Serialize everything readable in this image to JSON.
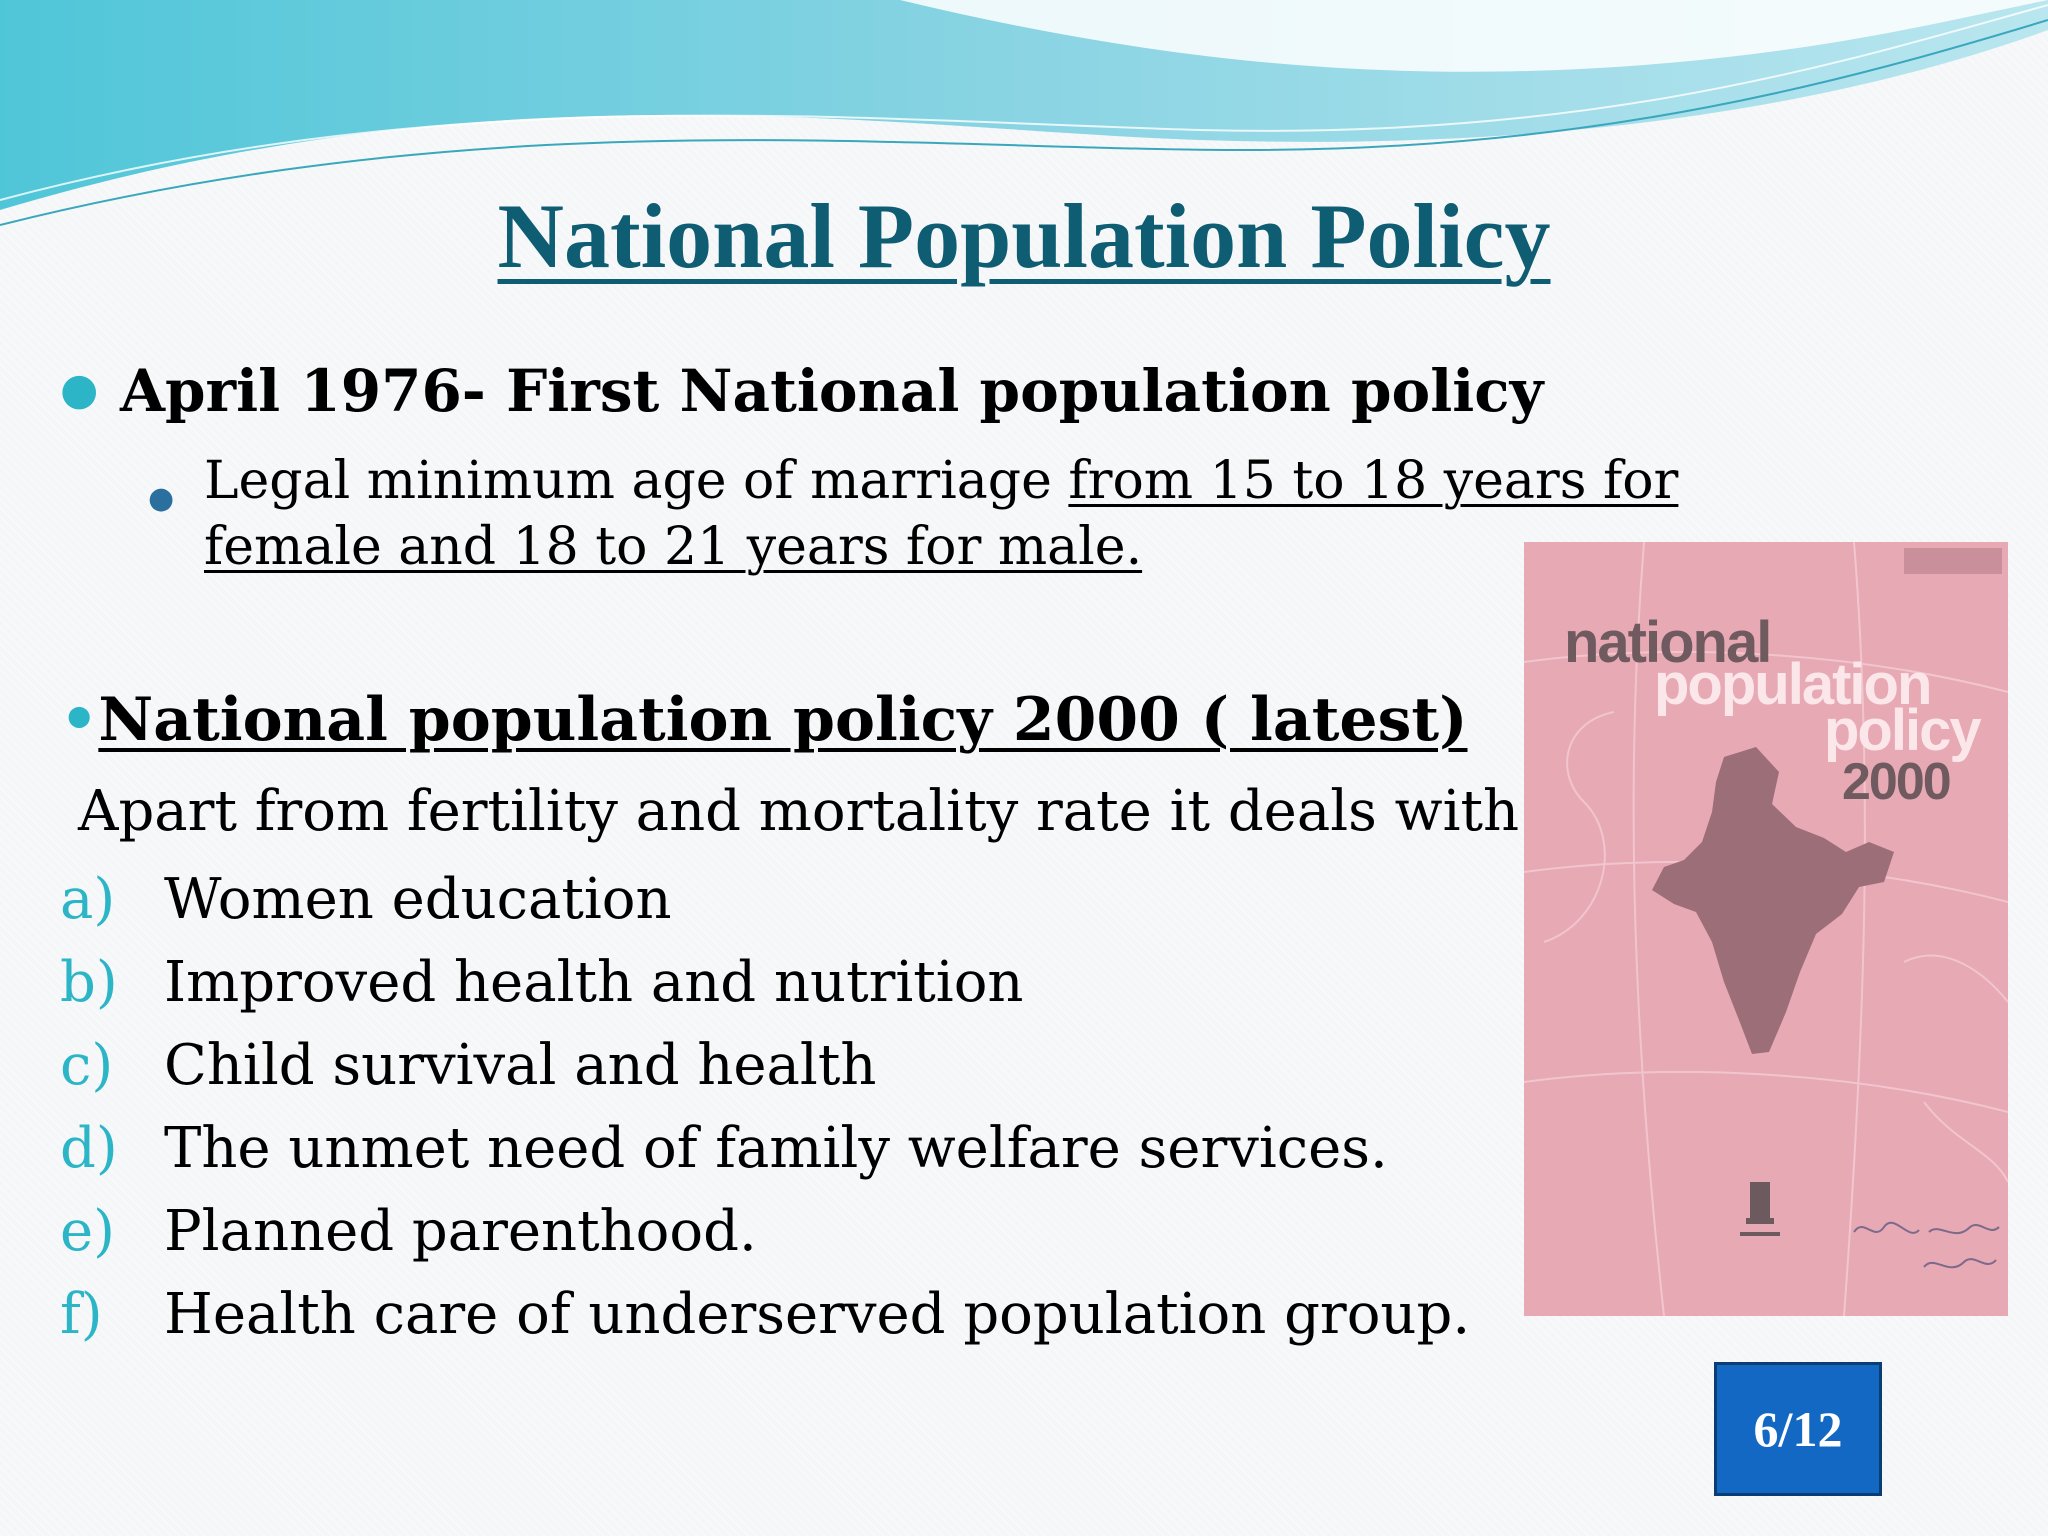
{
  "slide": {
    "title": "National Population Policy",
    "bullet1": "April 1976- First National population policy",
    "bullet1_sub_a": "Legal minimum age of marriage ",
    "bullet1_sub_b": "from 15 to 18 years for female and 18 to 21 years for male.",
    "bullet2_marker": "•",
    "bullet2": "National population policy 2000 ( latest)",
    "intro": "Apart from fertility and mortality rate it deals with :-",
    "items": [
      {
        "marker": "a)",
        "text": "Women education"
      },
      {
        "marker": "b)",
        "text": "Improved health and nutrition"
      },
      {
        "marker": "c)",
        "text": "Child survival and health"
      },
      {
        "marker": "d)",
        "text": "The unmet need of family welfare services."
      },
      {
        "marker": "e)",
        "text": "Planned parenthood."
      },
      {
        "marker": "f)",
        "text": "Health care of underserved population group."
      }
    ],
    "page_number": "6/12"
  },
  "cover_image": {
    "line1": "national",
    "line2": "population",
    "line3": "policy",
    "line4": "2000",
    "background_color": "#e7a9b4"
  },
  "colors": {
    "title": "#0e5d73",
    "bullet_accent": "#2bb5c6",
    "page_badge": "#1268c2"
  }
}
